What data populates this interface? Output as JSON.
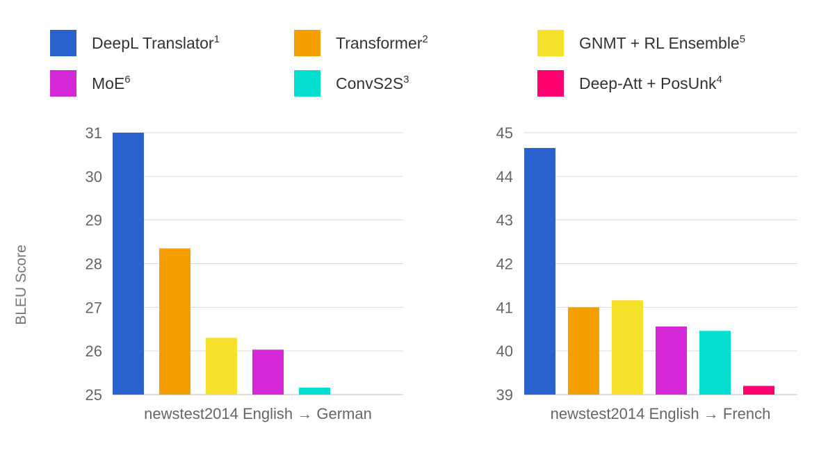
{
  "legend": {
    "items": [
      {
        "label": "DeepL Translator",
        "sup": "1",
        "color": "#2962cc"
      },
      {
        "label": "Transformer",
        "sup": "2",
        "color": "#f5a000"
      },
      {
        "label": "GNMT + RL Ensemble",
        "sup": "5",
        "color": "#f5e02a"
      },
      {
        "label": "MoE",
        "sup": "6",
        "color": "#d228d8"
      },
      {
        "label": "ConvS2S",
        "sup": "3",
        "color": "#05ddcf"
      },
      {
        "label": "Deep-Att + PosUnk",
        "sup": "4",
        "color": "#ff006e"
      }
    ]
  },
  "chart_data": [
    {
      "type": "bar",
      "title": "",
      "xlabel": "newstest2014 English → German",
      "ylabel": "BLEU Score",
      "ylim": [
        25,
        31
      ],
      "yticks": [
        "25",
        "26",
        "27",
        "28",
        "29",
        "30",
        "31"
      ],
      "grid": true,
      "series": [
        {
          "name": "DeepL Translator",
          "value": 31.0
        },
        {
          "name": "Transformer",
          "value": 28.35
        },
        {
          "name": "GNMT + RL Ensemble",
          "value": 26.3
        },
        {
          "name": "MoE",
          "value": 26.03
        },
        {
          "name": "ConvS2S",
          "value": 25.16
        }
      ]
    },
    {
      "type": "bar",
      "title": "",
      "xlabel": "newstest2014 English → French",
      "ylabel": "",
      "ylim": [
        39,
        45
      ],
      "yticks": [
        "39",
        "40",
        "41",
        "42",
        "43",
        "44",
        "45"
      ],
      "grid": true,
      "series": [
        {
          "name": "DeepL Translator",
          "value": 44.65
        },
        {
          "name": "Transformer",
          "value": 41.0
        },
        {
          "name": "GNMT + RL Ensemble",
          "value": 41.16
        },
        {
          "name": "MoE",
          "value": 40.56
        },
        {
          "name": "ConvS2S",
          "value": 40.46
        },
        {
          "name": "Deep-Att + PosUnk",
          "value": 39.2
        }
      ]
    }
  ]
}
